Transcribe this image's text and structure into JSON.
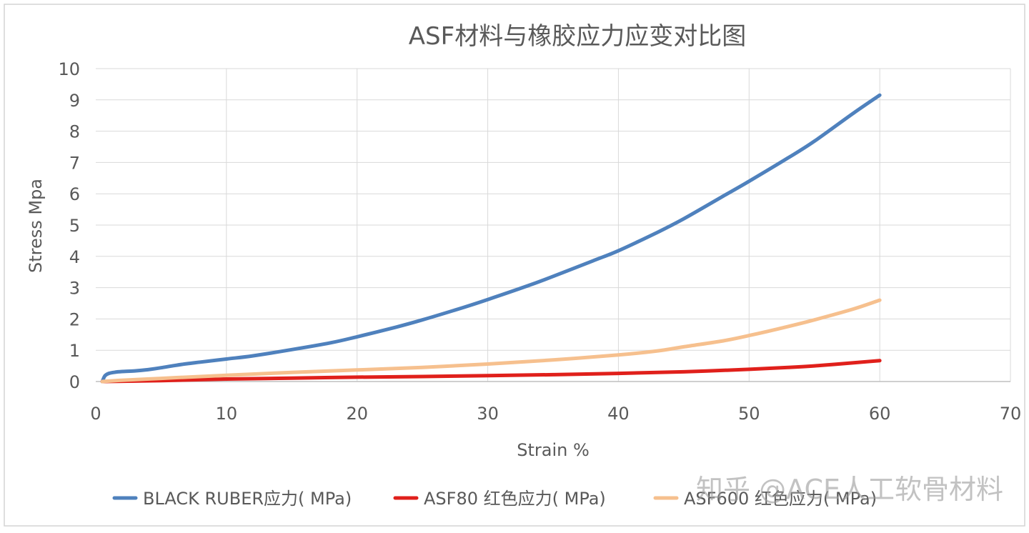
{
  "chart_data": {
    "type": "line",
    "title": "ASF材料与橡胶应力应变对比图",
    "xlabel": "Strain %",
    "ylabel": "Stress Mpa",
    "xlim": [
      0,
      70
    ],
    "ylim": [
      0,
      10
    ],
    "x_ticks": [
      "0",
      "10",
      "20",
      "30",
      "40",
      "50",
      "60",
      "70"
    ],
    "y_ticks": [
      "0",
      "1",
      "2",
      "3",
      "4",
      "5",
      "6",
      "7",
      "8",
      "9",
      "10"
    ],
    "grid": true,
    "legend_position": "bottom",
    "series": [
      {
        "name": "BLACK RUBER应力( MPa)",
        "color": "#4f81bd",
        "points": [
          [
            0.5,
            0
          ],
          [
            0.7,
            0.18
          ],
          [
            1,
            0.26
          ],
          [
            1.5,
            0.3
          ],
          [
            2,
            0.32
          ],
          [
            3,
            0.34
          ],
          [
            4,
            0.38
          ],
          [
            5,
            0.44
          ],
          [
            6,
            0.51
          ],
          [
            7,
            0.57
          ],
          [
            8,
            0.62
          ],
          [
            10,
            0.72
          ],
          [
            12,
            0.82
          ],
          [
            15,
            1.02
          ],
          [
            18,
            1.24
          ],
          [
            20,
            1.43
          ],
          [
            23,
            1.74
          ],
          [
            25,
            1.97
          ],
          [
            28,
            2.35
          ],
          [
            30,
            2.62
          ],
          [
            33,
            3.05
          ],
          [
            35,
            3.36
          ],
          [
            38,
            3.85
          ],
          [
            40,
            4.18
          ],
          [
            43,
            4.77
          ],
          [
            45,
            5.2
          ],
          [
            48,
            5.92
          ],
          [
            50,
            6.4
          ],
          [
            53,
            7.15
          ],
          [
            55,
            7.68
          ],
          [
            58,
            8.58
          ],
          [
            60,
            9.15
          ]
        ]
      },
      {
        "name": "ASF80 红色应力( MPa)",
        "color": "#e0201b",
        "points": [
          [
            0.5,
            0
          ],
          [
            2,
            0.01
          ],
          [
            5,
            0.03
          ],
          [
            10,
            0.08
          ],
          [
            15,
            0.11
          ],
          [
            20,
            0.14
          ],
          [
            25,
            0.16
          ],
          [
            30,
            0.19
          ],
          [
            35,
            0.22
          ],
          [
            40,
            0.26
          ],
          [
            45,
            0.31
          ],
          [
            50,
            0.39
          ],
          [
            53,
            0.45
          ],
          [
            55,
            0.5
          ],
          [
            58,
            0.6
          ],
          [
            60,
            0.67
          ]
        ]
      },
      {
        "name": "ASF600 红色应力( MPa)",
        "color": "#f6c08e",
        "points": [
          [
            0.5,
            0
          ],
          [
            2,
            0.04
          ],
          [
            5,
            0.1
          ],
          [
            8,
            0.16
          ],
          [
            10,
            0.2
          ],
          [
            15,
            0.29
          ],
          [
            20,
            0.37
          ],
          [
            25,
            0.45
          ],
          [
            30,
            0.56
          ],
          [
            35,
            0.69
          ],
          [
            40,
            0.85
          ],
          [
            43,
            0.98
          ],
          [
            45,
            1.11
          ],
          [
            48,
            1.3
          ],
          [
            50,
            1.47
          ],
          [
            53,
            1.76
          ],
          [
            55,
            1.97
          ],
          [
            58,
            2.32
          ],
          [
            60,
            2.6
          ]
        ]
      }
    ]
  },
  "watermark": "知乎 @ACE人工软骨材料"
}
